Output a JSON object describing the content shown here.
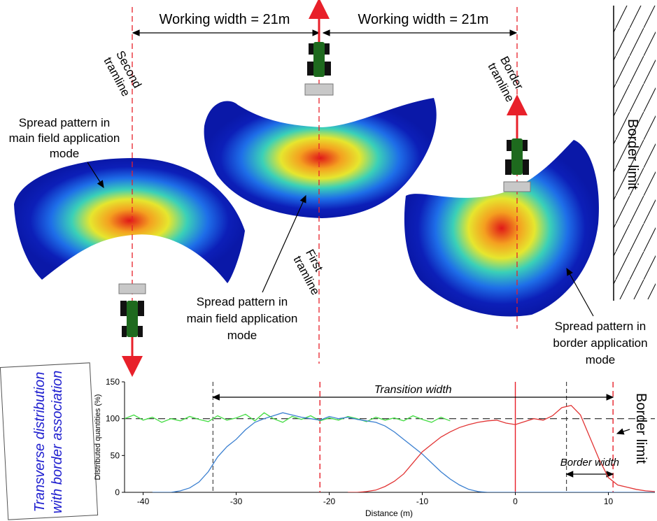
{
  "annotations": {
    "working_width_left": "Working width = 21m",
    "working_width_right": "Working width = 21m",
    "second_tramline": [
      "Second",
      "tramline"
    ],
    "first_tramline": [
      "First",
      "tramline"
    ],
    "border_tramline": [
      "Border",
      "tramline"
    ],
    "border_limit_top": "Border limit",
    "spread_main_left": [
      "Spread pattern in",
      "main field application",
      "mode"
    ],
    "spread_main_center": [
      "Spread pattern in",
      "main field application",
      "mode"
    ],
    "spread_border": [
      "Spread pattern in",
      "border application",
      "mode"
    ],
    "side_box": [
      "Transverse distribution",
      "with border association"
    ],
    "transition_width": "Transition width",
    "border_width": "Border width",
    "border_limit_chart": "Border limit"
  },
  "colors": {
    "tramline": "#e8202a",
    "series_green": "#44dd44",
    "series_blue": "#3a7fd0",
    "series_red": "#e23434",
    "tractor_body": "#1e6a1e",
    "spreader": "#c8c8c8",
    "side_box_text": "#1f1fcf",
    "hatch": "#000000"
  },
  "chart_data": {
    "type": "line",
    "xlabel": "Distance (m)",
    "ylabel": "Distributed quantities (%)",
    "xlim": [
      -42,
      15
    ],
    "ylim": [
      0,
      150
    ],
    "xticks": [
      -40,
      -30,
      -20,
      -10,
      0,
      10
    ],
    "yticks": [
      0,
      50,
      100,
      150
    ],
    "reference_line": 100,
    "tramline_positions": [
      -21,
      0,
      10.5
    ],
    "transition_width_range": [
      -32.5,
      10.5
    ],
    "border_width_range": [
      5.5,
      10.5
    ],
    "series": [
      {
        "color": "green",
        "x": [
          -42,
          -41,
          -40,
          -39,
          -38,
          -37,
          -36,
          -35,
          -34,
          -33,
          -32,
          -31,
          -30,
          -29,
          -28,
          -27,
          -26,
          -25,
          -24,
          -23,
          -22,
          -21,
          -20,
          -19,
          -18,
          -17,
          -16,
          -15,
          -14,
          -13,
          -12,
          -11,
          -10,
          -9,
          -8,
          -7
        ],
        "y": [
          100,
          105,
          98,
          102,
          95,
          100,
          97,
          103,
          99,
          96,
          104,
          98,
          101,
          106,
          97,
          108,
          100,
          95,
          103,
          99,
          104,
          97,
          101,
          98,
          103,
          100,
          96,
          102,
          98,
          101,
          97,
          104,
          99,
          95,
          102,
          97
        ]
      },
      {
        "color": "blue",
        "x": [
          -39,
          -38,
          -37,
          -36,
          -35,
          -34,
          -33,
          -32,
          -31,
          -30,
          -29,
          -28,
          -27,
          -26,
          -25,
          -24,
          -23,
          -22,
          -21,
          -20,
          -19,
          -18,
          -17,
          -16,
          -15,
          -14,
          -13,
          -12,
          -11,
          -10,
          -9,
          -8,
          -7,
          -6,
          -5,
          -4,
          -3,
          -2,
          -1,
          0,
          5,
          10,
          15
        ],
        "y": [
          0,
          0,
          0,
          2,
          6,
          14,
          28,
          48,
          62,
          72,
          85,
          95,
          100,
          104,
          108,
          105,
          102,
          100,
          98,
          103,
          100,
          102,
          99,
          97,
          95,
          90,
          82,
          72,
          62,
          52,
          40,
          28,
          18,
          10,
          4,
          1,
          0,
          0,
          0,
          0,
          0,
          0,
          0
        ]
      },
      {
        "color": "red",
        "x": [
          -18,
          -17,
          -16,
          -15,
          -14,
          -13,
          -12,
          -11,
          -10,
          -9,
          -8,
          -7,
          -6,
          -5,
          -4,
          -3,
          -2,
          -1,
          0,
          1,
          2,
          3,
          4,
          5,
          6,
          7,
          8,
          9,
          10,
          11,
          12,
          13,
          14,
          15
        ],
        "y": [
          0,
          0,
          1,
          3,
          8,
          15,
          25,
          40,
          55,
          65,
          75,
          82,
          88,
          92,
          95,
          97,
          98,
          94,
          92,
          96,
          100,
          98,
          104,
          115,
          118,
          105,
          75,
          45,
          20,
          10,
          7,
          4,
          2,
          1
        ]
      }
    ]
  }
}
